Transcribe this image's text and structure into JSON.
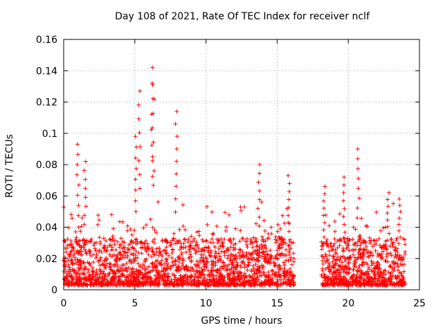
{
  "chart_data": {
    "type": "scatter",
    "title": "Day 108 of 2021, Rate Of TEC Index for receiver nclf",
    "xlabel": "GPS time / hours",
    "ylabel": "ROTI / TECUs",
    "xlim": [
      0,
      25
    ],
    "ylim": [
      0,
      0.16
    ],
    "xticks": [
      0,
      5,
      10,
      15,
      20,
      25
    ],
    "yticks": [
      0,
      0.02,
      0.04,
      0.06,
      0.08,
      0.1,
      0.12,
      0.14,
      0.16
    ],
    "xtick_labels": [
      "0",
      "5",
      "10",
      "15",
      "20",
      "25"
    ],
    "ytick_labels": [
      "0",
      "0.02",
      "0.04",
      "0.06",
      "0.08",
      "0.1",
      "0.12",
      "0.14",
      "0.16"
    ],
    "grid": true,
    "marker": "+",
    "series": [
      {
        "name": "ROTI",
        "color": "#ff0000",
        "data_gap_hours": [
          16.2,
          18.1
        ],
        "peaks": [
          {
            "x": 1.0,
            "y": 0.093
          },
          {
            "x": 1.5,
            "y": 0.082
          },
          {
            "x": 5.1,
            "y": 0.098
          },
          {
            "x": 5.3,
            "y": 0.127
          },
          {
            "x": 6.2,
            "y": 0.142
          },
          {
            "x": 6.3,
            "y": 0.131
          },
          {
            "x": 7.9,
            "y": 0.114
          },
          {
            "x": 13.7,
            "y": 0.08
          },
          {
            "x": 15.8,
            "y": 0.073
          },
          {
            "x": 18.3,
            "y": 0.066
          },
          {
            "x": 19.7,
            "y": 0.072
          },
          {
            "x": 20.7,
            "y": 0.09
          },
          {
            "x": 22.8,
            "y": 0.062
          },
          {
            "x": 23.6,
            "y": 0.058
          }
        ]
      }
    ]
  }
}
